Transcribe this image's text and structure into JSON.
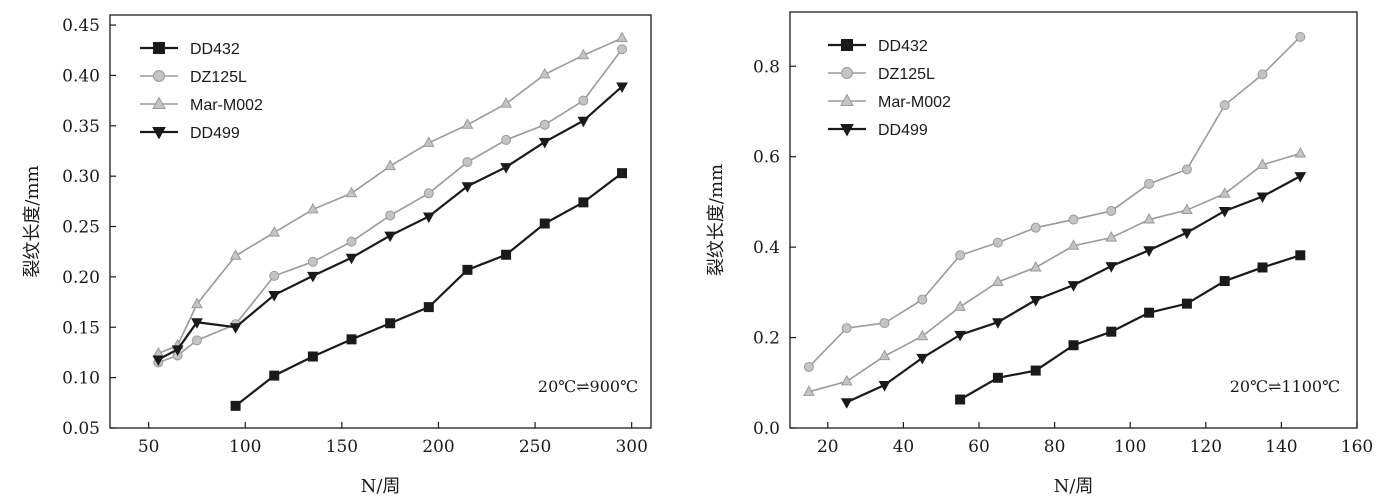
{
  "chart_data": [
    {
      "type": "line",
      "title": "",
      "xlabel": "N/周",
      "ylabel": "裂纹长度/mm",
      "xlim": [
        30,
        310
      ],
      "ylim": [
        0.05,
        0.46
      ],
      "xticks": [
        "50",
        "100",
        "150",
        "200",
        "250",
        "300"
      ],
      "yticks": [
        "0.05",
        "0.10",
        "0.15",
        "0.20",
        "0.25",
        "0.30",
        "0.35",
        "0.40",
        "0.45"
      ],
      "annotation": "20℃⇌900℃",
      "legend_position": "top-left",
      "grid": false,
      "series": [
        {
          "name": "DD432",
          "marker": "square",
          "color": "#1a1a1a",
          "x": [
            95,
            115,
            135,
            155,
            175,
            195,
            215,
            235,
            255,
            275,
            295
          ],
          "y": [
            0.072,
            0.102,
            0.121,
            0.138,
            0.154,
            0.17,
            0.207,
            0.222,
            0.253,
            0.274,
            0.303
          ]
        },
        {
          "name": "DZ125L",
          "marker": "circle",
          "color": "#9a9a9a",
          "x": [
            55,
            65,
            75,
            95,
            115,
            135,
            155,
            175,
            195,
            215,
            235,
            255,
            275,
            295
          ],
          "y": [
            0.115,
            0.122,
            0.137,
            0.153,
            0.201,
            0.215,
            0.235,
            0.261,
            0.283,
            0.314,
            0.336,
            0.351,
            0.375,
            0.426
          ]
        },
        {
          "name": "Mar-M002",
          "marker": "triangle-up",
          "color": "#9a9a9a",
          "x": [
            55,
            65,
            75,
            95,
            115,
            135,
            155,
            175,
            195,
            215,
            235,
            255,
            275,
            295
          ],
          "y": [
            0.124,
            0.132,
            0.173,
            0.221,
            0.244,
            0.267,
            0.283,
            0.31,
            0.333,
            0.351,
            0.372,
            0.401,
            0.42,
            0.437
          ]
        },
        {
          "name": "DD499",
          "marker": "triangle-down",
          "color": "#1a1a1a",
          "x": [
            55,
            65,
            75,
            95,
            115,
            135,
            155,
            175,
            195,
            215,
            235,
            255,
            275,
            295
          ],
          "y": [
            0.118,
            0.128,
            0.155,
            0.15,
            0.182,
            0.201,
            0.219,
            0.241,
            0.26,
            0.29,
            0.309,
            0.334,
            0.355,
            0.389
          ]
        }
      ]
    },
    {
      "type": "line",
      "title": "",
      "xlabel": "N/周",
      "ylabel": "裂纹长度/mm",
      "xlim": [
        10,
        160
      ],
      "ylim": [
        0.0,
        0.92
      ],
      "xticks": [
        "20",
        "40",
        "60",
        "80",
        "100",
        "120",
        "140",
        "160"
      ],
      "yticks": [
        "0.0",
        "0.2",
        "0.4",
        "0.6",
        "0.8"
      ],
      "annotation": "20℃⇌1100℃",
      "legend_position": "top-left",
      "grid": false,
      "series": [
        {
          "name": "DD432",
          "marker": "square",
          "color": "#1a1a1a",
          "x": [
            55,
            65,
            75,
            85,
            95,
            105,
            115,
            125,
            135,
            145
          ],
          "y": [
            0.063,
            0.111,
            0.127,
            0.183,
            0.213,
            0.255,
            0.275,
            0.325,
            0.355,
            0.382
          ]
        },
        {
          "name": "DZ125L",
          "marker": "circle",
          "color": "#9a9a9a",
          "x": [
            15,
            25,
            35,
            45,
            55,
            65,
            75,
            85,
            95,
            105,
            115,
            125,
            135,
            145
          ],
          "y": [
            0.135,
            0.221,
            0.232,
            0.284,
            0.382,
            0.41,
            0.443,
            0.461,
            0.48,
            0.54,
            0.572,
            0.714,
            0.782,
            0.865
          ]
        },
        {
          "name": "Mar-M002",
          "marker": "triangle-up",
          "color": "#9a9a9a",
          "x": [
            15,
            25,
            35,
            45,
            55,
            65,
            75,
            85,
            95,
            105,
            115,
            125,
            135,
            145
          ],
          "y": [
            0.08,
            0.103,
            0.159,
            0.203,
            0.268,
            0.323,
            0.355,
            0.403,
            0.421,
            0.461,
            0.482,
            0.518,
            0.582,
            0.607
          ]
        },
        {
          "name": "DD499",
          "marker": "triangle-down",
          "color": "#1a1a1a",
          "x": [
            25,
            35,
            45,
            55,
            65,
            75,
            85,
            95,
            105,
            115,
            125,
            135,
            145
          ],
          "y": [
            0.057,
            0.095,
            0.155,
            0.206,
            0.234,
            0.283,
            0.316,
            0.358,
            0.393,
            0.432,
            0.48,
            0.512,
            0.557
          ]
        }
      ]
    }
  ]
}
